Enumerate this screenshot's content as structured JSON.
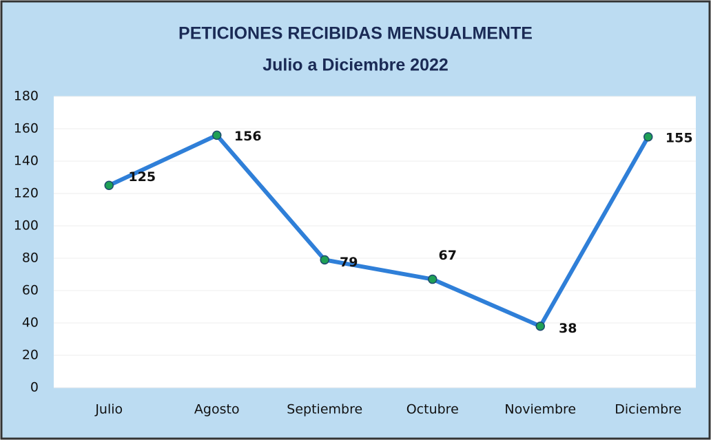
{
  "chart_data": {
    "type": "line",
    "title": "PETICIONES RECIBIDAS MENSUALMENTE",
    "subtitle": "Julio a Diciembre 2022",
    "categories": [
      "Julio",
      "Agosto",
      "Septiembre",
      "Octubre",
      "Noviembre",
      "Diciembre"
    ],
    "series": [
      {
        "name": "Peticiones",
        "color": "#2f7fd8",
        "values": [
          125,
          156,
          79,
          67,
          38,
          155
        ]
      }
    ],
    "marker_color": "#1fa055",
    "ylim": [
      0,
      180
    ],
    "yticks": [
      0,
      20,
      40,
      60,
      80,
      100,
      120,
      140,
      160,
      180
    ],
    "grid": true
  }
}
